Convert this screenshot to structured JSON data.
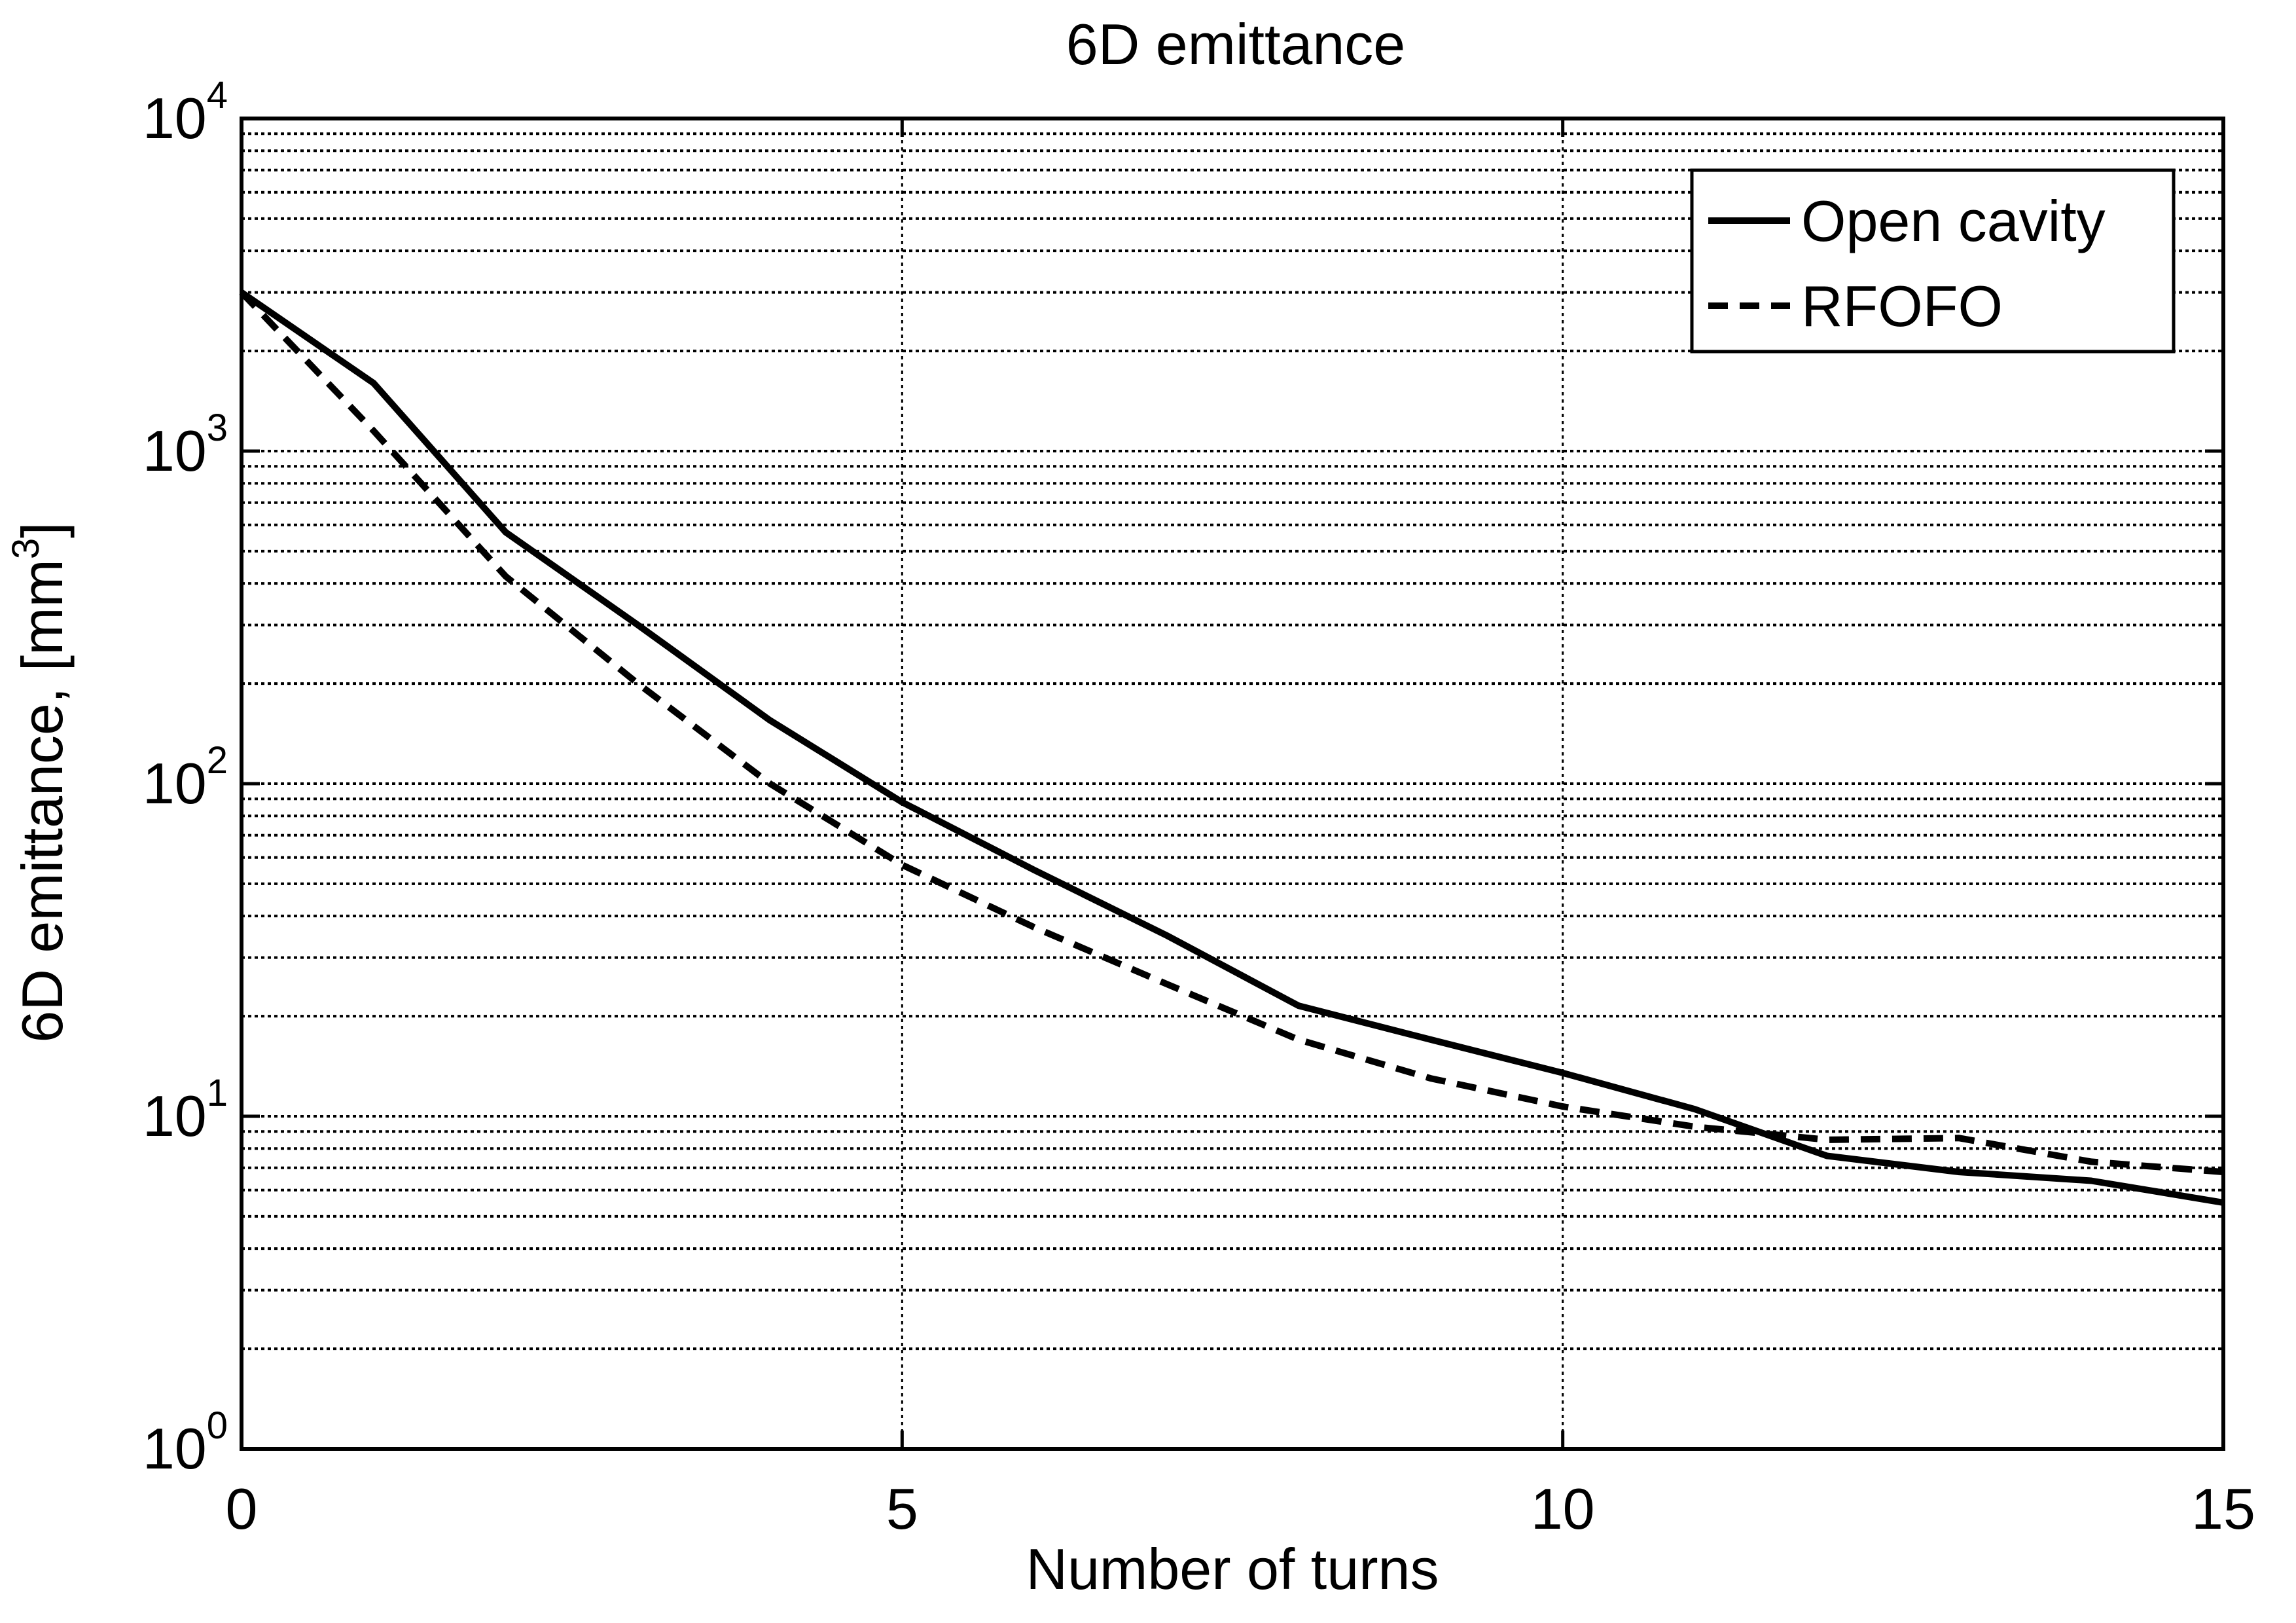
{
  "chart_data": {
    "type": "line",
    "title": "6D emittance",
    "xlabel": "Number of turns",
    "ylabel": "6D emittance, [mm",
    "ylabel_exponent": "3",
    "ylabel_suffix": "]",
    "xlim": [
      0,
      15
    ],
    "ylim": [
      1,
      10000
    ],
    "yscale": "log",
    "grid": true,
    "legend_position": "top-right",
    "x_ticks": [
      {
        "value": 0,
        "label": "0"
      },
      {
        "value": 5,
        "label": "5"
      },
      {
        "value": 10,
        "label": "10"
      },
      {
        "value": 15,
        "label": "15"
      }
    ],
    "y_ticks": [
      {
        "value": 1,
        "base": "10",
        "exponent": "0"
      },
      {
        "value": 10,
        "base": "10",
        "exponent": "1"
      },
      {
        "value": 100,
        "base": "10",
        "exponent": "2"
      },
      {
        "value": 1000,
        "base": "10",
        "exponent": "3"
      },
      {
        "value": 10000,
        "base": "10",
        "exponent": "4"
      }
    ],
    "series": [
      {
        "name": "Open cavity",
        "style": "solid",
        "color": "#000000",
        "x": [
          0,
          1,
          2,
          3,
          4,
          5,
          6,
          7,
          8,
          9,
          10,
          11,
          12,
          13,
          14,
          15
        ],
        "y": [
          3000,
          1600,
          570,
          300,
          155,
          88,
          55,
          35,
          21.5,
          17,
          13.5,
          10.5,
          7.6,
          6.8,
          6.4,
          5.5
        ]
      },
      {
        "name": "RFOFO",
        "style": "dashed",
        "color": "#000000",
        "x": [
          0,
          1,
          2,
          3,
          4,
          5,
          6,
          7,
          8,
          9,
          10,
          11,
          12,
          13,
          14,
          15
        ],
        "y": [
          3000,
          1150,
          420,
          200,
          100,
          57,
          37,
          25,
          17,
          13,
          10.7,
          9.3,
          8.5,
          8.6,
          7.3,
          6.8
        ]
      }
    ]
  }
}
